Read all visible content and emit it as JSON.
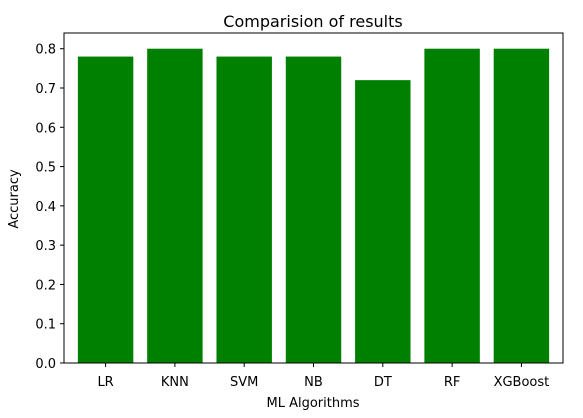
{
  "chart_data": {
    "type": "bar",
    "title": "Comparision of results",
    "xlabel": "ML Algorithms",
    "ylabel": "Accuracy",
    "categories": [
      "LR",
      "KNN",
      "SVM",
      "NB",
      "DT",
      "RF",
      "XGBoost"
    ],
    "values": [
      0.78,
      0.8,
      0.78,
      0.78,
      0.72,
      0.8,
      0.8
    ],
    "ylim": [
      0,
      0.84
    ],
    "yticks": [
      "0.0",
      "0.1",
      "0.2",
      "0.3",
      "0.4",
      "0.5",
      "0.6",
      "0.7",
      "0.8"
    ],
    "bar_color": "#008000",
    "grid": false,
    "legend": "none"
  }
}
